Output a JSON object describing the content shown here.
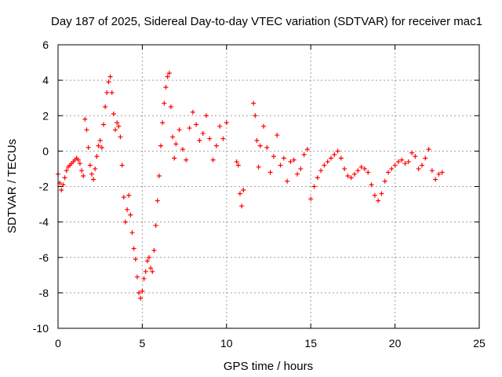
{
  "chart_data": {
    "type": "scatter",
    "title": "Day 187 of 2025, Sidereal Day-to-day VTEC variation (SDTVAR) for receiver mac1",
    "xlabel": "GPS time / hours",
    "ylabel": "SDTVAR / TECUs",
    "xlim": [
      0,
      25
    ],
    "ylim": [
      -10,
      6
    ],
    "xticks": [
      0,
      5,
      10,
      15,
      20,
      25
    ],
    "yticks": [
      -10,
      -8,
      -6,
      -4,
      -2,
      0,
      2,
      4,
      6
    ],
    "grid": true,
    "marker": "+",
    "color": "#ff0000",
    "series": [
      {
        "name": "SDTVAR",
        "x": [
          0.0,
          0.1,
          0.2,
          0.3,
          0.4,
          0.5,
          0.6,
          0.7,
          0.8,
          0.9,
          1.0,
          1.1,
          1.2,
          1.3,
          1.4,
          1.5,
          1.6,
          1.7,
          1.8,
          1.9,
          2.0,
          2.1,
          2.2,
          2.3,
          2.4,
          2.5,
          2.6,
          2.7,
          2.8,
          2.9,
          3.0,
          3.1,
          3.2,
          3.3,
          3.4,
          3.5,
          3.6,
          3.7,
          3.8,
          3.9,
          4.0,
          4.1,
          4.2,
          4.3,
          4.4,
          4.5,
          4.6,
          4.7,
          4.8,
          4.9,
          5.0,
          5.1,
          5.2,
          5.3,
          5.4,
          5.5,
          5.6,
          5.7,
          5.8,
          5.9,
          6.0,
          6.1,
          6.2,
          6.3,
          6.4,
          6.5,
          6.6,
          6.7,
          6.8,
          6.9,
          7.0,
          7.2,
          7.4,
          7.6,
          7.8,
          8.0,
          8.2,
          8.4,
          8.6,
          8.8,
          9.0,
          9.2,
          9.4,
          9.6,
          9.8,
          10.0,
          10.6,
          10.7,
          10.8,
          10.9,
          11.0,
          11.6,
          11.7,
          11.8,
          11.9,
          12.0,
          12.2,
          12.4,
          12.6,
          12.8,
          13.0,
          13.2,
          13.4,
          13.6,
          13.8,
          14.0,
          14.2,
          14.4,
          14.6,
          14.8,
          15.0,
          15.2,
          15.4,
          15.6,
          15.8,
          16.0,
          16.2,
          16.4,
          16.6,
          16.8,
          17.0,
          17.2,
          17.4,
          17.6,
          17.8,
          18.0,
          18.2,
          18.4,
          18.6,
          18.8,
          19.0,
          19.2,
          19.4,
          19.6,
          19.8,
          20.0,
          20.2,
          20.4,
          20.6,
          20.8,
          21.0,
          21.2,
          21.4,
          21.6,
          21.8,
          22.0,
          22.2,
          22.4,
          22.6,
          22.8
        ],
        "y": [
          -1.3,
          -1.8,
          -2.2,
          -1.9,
          -1.5,
          -1.1,
          -0.9,
          -0.8,
          -0.7,
          -0.6,
          -0.5,
          -0.4,
          -0.5,
          -0.7,
          -1.1,
          -1.4,
          1.8,
          1.2,
          0.2,
          -0.8,
          -1.3,
          -1.6,
          -1.0,
          -0.3,
          0.3,
          0.6,
          0.2,
          1.5,
          2.5,
          3.3,
          3.9,
          4.2,
          3.3,
          2.1,
          1.2,
          1.6,
          1.4,
          0.8,
          -0.8,
          -2.6,
          -4.0,
          -3.3,
          -2.5,
          -3.6,
          -4.6,
          -5.5,
          -6.1,
          -7.1,
          -8.0,
          -8.3,
          -7.9,
          -7.2,
          -6.8,
          -6.2,
          -6.0,
          -6.6,
          -6.8,
          -5.6,
          -4.2,
          -2.8,
          -1.4,
          0.3,
          1.6,
          2.7,
          3.6,
          4.2,
          4.4,
          2.5,
          0.8,
          -0.4,
          0.4,
          1.2,
          0.1,
          -0.5,
          1.3,
          2.2,
          1.5,
          0.6,
          1.0,
          2.0,
          0.7,
          -0.5,
          0.3,
          1.4,
          0.7,
          1.6,
          -0.6,
          -0.8,
          -2.4,
          -3.1,
          -2.2,
          2.7,
          2.0,
          0.6,
          -0.9,
          0.3,
          1.4,
          0.2,
          -1.2,
          -0.3,
          0.9,
          -0.8,
          -0.4,
          -1.7,
          -0.6,
          -0.5,
          -1.3,
          -1.0,
          -0.2,
          0.1,
          -2.7,
          -2.0,
          -1.5,
          -1.1,
          -0.8,
          -0.6,
          -0.4,
          -0.2,
          0.0,
          -0.4,
          -1.0,
          -1.4,
          -1.5,
          -1.3,
          -1.1,
          -0.9,
          -1.0,
          -1.2,
          -1.9,
          -2.5,
          -2.8,
          -2.4,
          -1.7,
          -1.2,
          -1.0,
          -0.8,
          -0.6,
          -0.5,
          -0.7,
          -0.6,
          -0.1,
          -0.3,
          -1.0,
          -0.8,
          -0.4,
          0.1,
          -1.1,
          -1.6,
          -1.3,
          -1.2
        ]
      }
    ]
  }
}
